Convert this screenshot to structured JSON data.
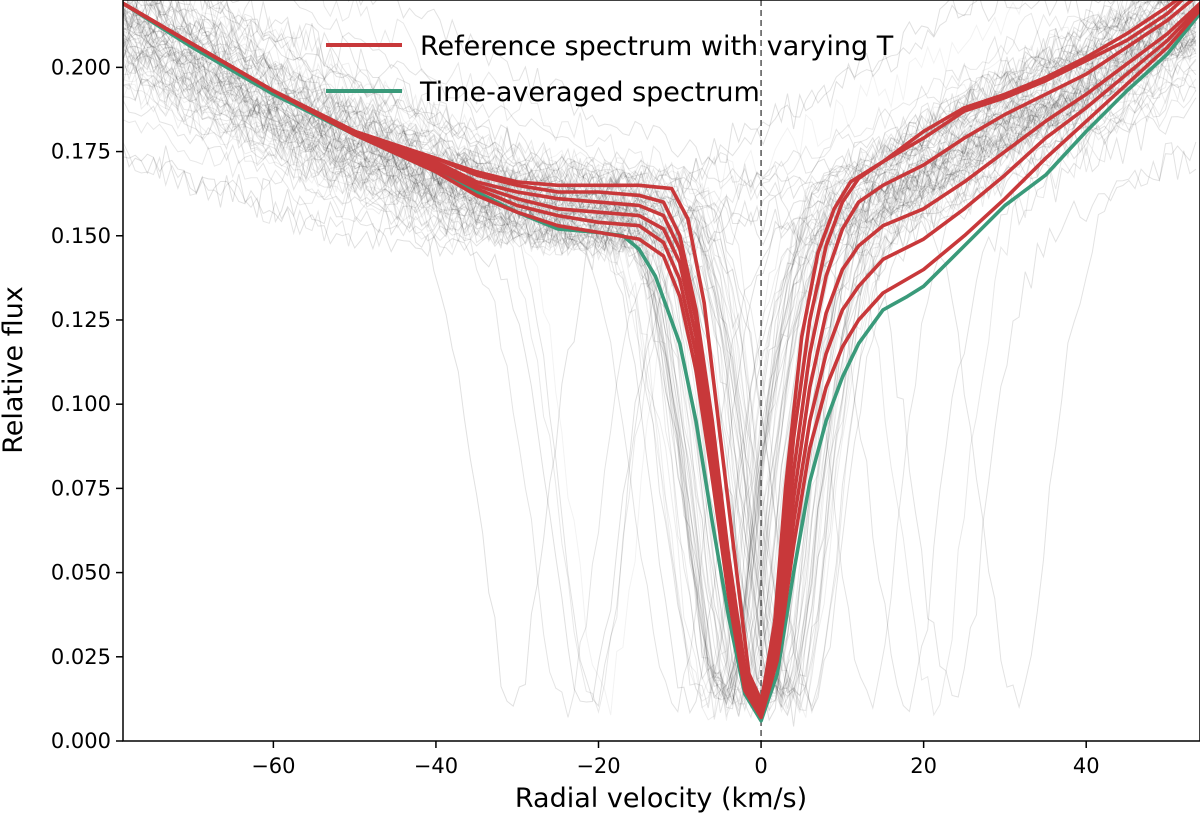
{
  "chart_data": {
    "type": "line",
    "xlabel": "Radial velocity (km/s)",
    "ylabel": "Relative flux",
    "xlim": [
      -78.5,
      54
    ],
    "ylim": [
      0,
      0.22
    ],
    "x_ticks": [
      -60,
      -40,
      -20,
      0,
      20,
      40
    ],
    "x_tick_labels": [
      "−60",
      "−40",
      "−20",
      "0",
      "20",
      "40"
    ],
    "y_ticks": [
      0.0,
      0.025,
      0.05,
      0.075,
      0.1,
      0.125,
      0.15,
      0.175,
      0.2
    ],
    "y_tick_labels": [
      "0.000",
      "0.025",
      "0.050",
      "0.075",
      "0.100",
      "0.125",
      "0.150",
      "0.175",
      "0.200"
    ],
    "reference_line_x": 0,
    "legend": {
      "location": "top-center",
      "entries": [
        {
          "label": "Reference spectrum with varying T",
          "color": "#c8383a"
        },
        {
          "label": "Time-averaged spectrum",
          "color": "#3a9a7a"
        }
      ]
    },
    "colors": {
      "reference": "#c8383a",
      "averaged": "#3a9a7a",
      "background_spectra": "#000000"
    },
    "series": [
      {
        "name": "Reference spectrum T1",
        "group": "reference",
        "x": [
          -78.5,
          -70,
          -60,
          -50,
          -40,
          -35,
          -30,
          -25,
          -20,
          -15,
          -11,
          -9,
          -7,
          -5,
          -3,
          -1.5,
          0,
          1.5,
          3,
          5,
          7,
          9,
          11,
          15,
          20,
          25,
          30,
          35,
          40,
          45,
          50,
          54
        ],
        "y": [
          0.219,
          0.207,
          0.193,
          0.181,
          0.173,
          0.169,
          0.166,
          0.165,
          0.165,
          0.165,
          0.164,
          0.155,
          0.13,
          0.09,
          0.05,
          0.02,
          0.012,
          0.03,
          0.075,
          0.12,
          0.145,
          0.158,
          0.166,
          0.172,
          0.179,
          0.187,
          0.191,
          0.196,
          0.202,
          0.208,
          0.216,
          0.225
        ]
      },
      {
        "name": "Reference spectrum T2",
        "group": "reference",
        "x": [
          -78.5,
          -70,
          -60,
          -50,
          -40,
          -35,
          -30,
          -25,
          -20,
          -15,
          -12,
          -10,
          -8,
          -6,
          -4,
          -2,
          0,
          2,
          4,
          6,
          8,
          10,
          12,
          15,
          20,
          25,
          30,
          35,
          40,
          45,
          50,
          54
        ],
        "y": [
          0.219,
          0.207,
          0.193,
          0.181,
          0.173,
          0.168,
          0.165,
          0.163,
          0.163,
          0.162,
          0.16,
          0.15,
          0.128,
          0.095,
          0.055,
          0.022,
          0.011,
          0.04,
          0.09,
          0.125,
          0.147,
          0.16,
          0.167,
          0.172,
          0.181,
          0.188,
          0.192,
          0.197,
          0.203,
          0.21,
          0.218,
          0.225
        ]
      },
      {
        "name": "Reference spectrum T3",
        "group": "reference",
        "x": [
          -78.5,
          -70,
          -60,
          -50,
          -40,
          -35,
          -30,
          -25,
          -20,
          -15,
          -12,
          -10,
          -8,
          -6,
          -4,
          -2,
          0,
          2,
          4,
          6,
          8,
          10,
          12,
          15,
          20,
          25,
          30,
          35,
          40,
          45,
          50,
          54
        ],
        "y": [
          0.219,
          0.207,
          0.193,
          0.181,
          0.172,
          0.166,
          0.163,
          0.161,
          0.16,
          0.159,
          0.156,
          0.146,
          0.125,
          0.092,
          0.053,
          0.02,
          0.01,
          0.035,
          0.08,
          0.115,
          0.138,
          0.152,
          0.16,
          0.165,
          0.171,
          0.179,
          0.186,
          0.192,
          0.198,
          0.206,
          0.214,
          0.222
        ]
      },
      {
        "name": "Reference spectrum T4",
        "group": "reference",
        "x": [
          -78.5,
          -70,
          -60,
          -50,
          -40,
          -35,
          -30,
          -25,
          -20,
          -15,
          -12,
          -10,
          -8,
          -6,
          -4,
          -2,
          0,
          2,
          4,
          6,
          8,
          10,
          12,
          15,
          20,
          25,
          30,
          35,
          40,
          45,
          50,
          54
        ],
        "y": [
          0.219,
          0.207,
          0.193,
          0.181,
          0.171,
          0.165,
          0.161,
          0.158,
          0.157,
          0.156,
          0.152,
          0.142,
          0.12,
          0.088,
          0.05,
          0.019,
          0.009,
          0.03,
          0.072,
          0.105,
          0.127,
          0.14,
          0.147,
          0.153,
          0.158,
          0.166,
          0.175,
          0.184,
          0.192,
          0.201,
          0.21,
          0.219
        ]
      },
      {
        "name": "Reference spectrum T5",
        "group": "reference",
        "x": [
          -78.5,
          -70,
          -60,
          -50,
          -40,
          -35,
          -30,
          -25,
          -20,
          -15,
          -12,
          -10,
          -8,
          -6,
          -4,
          -2,
          0,
          2,
          4,
          6,
          8,
          10,
          12,
          15,
          20,
          25,
          30,
          35,
          40,
          45,
          50,
          54
        ],
        "y": [
          0.219,
          0.207,
          0.193,
          0.18,
          0.17,
          0.164,
          0.159,
          0.156,
          0.154,
          0.153,
          0.148,
          0.137,
          0.115,
          0.083,
          0.047,
          0.017,
          0.008,
          0.027,
          0.065,
          0.095,
          0.115,
          0.128,
          0.135,
          0.143,
          0.149,
          0.158,
          0.168,
          0.179,
          0.188,
          0.198,
          0.208,
          0.218
        ]
      },
      {
        "name": "Reference spectrum T6",
        "group": "reference",
        "x": [
          -78.5,
          -70,
          -60,
          -50,
          -40,
          -35,
          -30,
          -25,
          -20,
          -15,
          -12,
          -10,
          -8,
          -6,
          -4,
          -2,
          0,
          2,
          4,
          6,
          8,
          10,
          12,
          15,
          20,
          25,
          30,
          35,
          40,
          45,
          50,
          54
        ],
        "y": [
          0.219,
          0.207,
          0.193,
          0.18,
          0.169,
          0.162,
          0.157,
          0.153,
          0.151,
          0.149,
          0.144,
          0.132,
          0.11,
          0.078,
          0.043,
          0.015,
          0.007,
          0.024,
          0.058,
          0.087,
          0.105,
          0.117,
          0.125,
          0.133,
          0.14,
          0.15,
          0.161,
          0.173,
          0.184,
          0.195,
          0.206,
          0.217
        ]
      },
      {
        "name": "Time-averaged spectrum",
        "group": "averaged",
        "x": [
          -78.5,
          -70,
          -60,
          -50,
          -40,
          -35,
          -30,
          -27,
          -25,
          -20,
          -17,
          -15,
          -13,
          -10,
          -8,
          -6,
          -4,
          -2,
          0,
          2,
          4,
          6,
          8,
          10,
          12,
          15,
          18,
          20,
          25,
          30,
          35,
          40,
          45,
          50,
          54
        ],
        "y": [
          0.219,
          0.206,
          0.192,
          0.18,
          0.169,
          0.163,
          0.157,
          0.154,
          0.152,
          0.151,
          0.15,
          0.146,
          0.138,
          0.118,
          0.095,
          0.065,
          0.037,
          0.014,
          0.006,
          0.02,
          0.05,
          0.077,
          0.095,
          0.108,
          0.118,
          0.128,
          0.132,
          0.135,
          0.147,
          0.159,
          0.168,
          0.181,
          0.193,
          0.204,
          0.216
        ]
      }
    ]
  }
}
